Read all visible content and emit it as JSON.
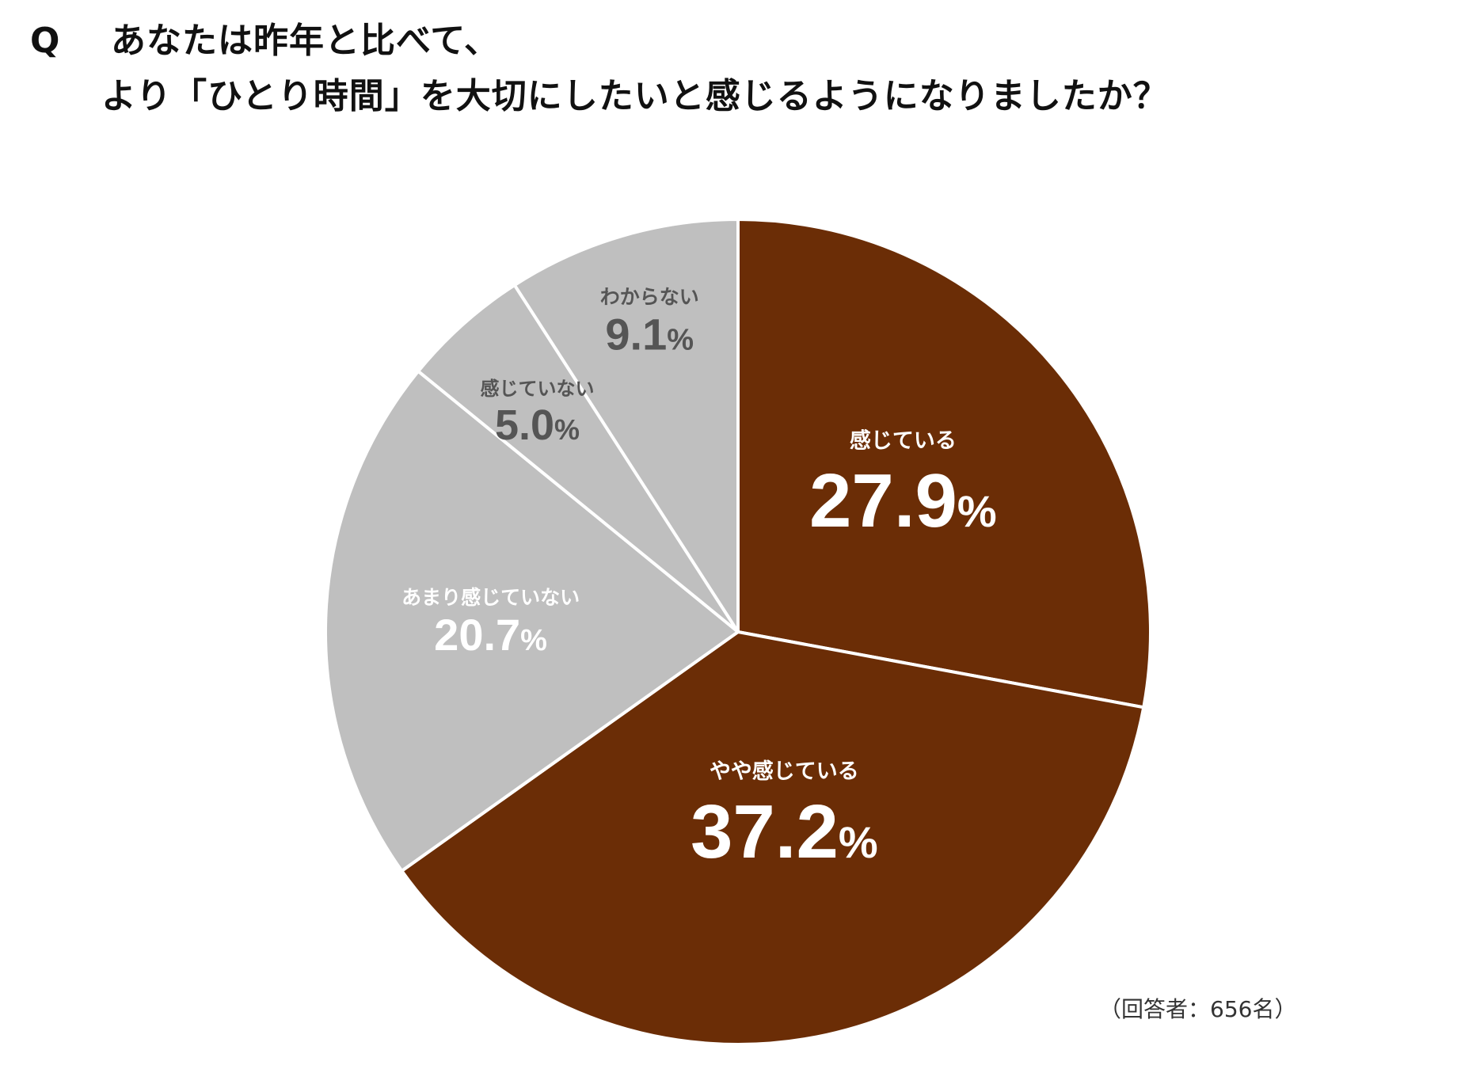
{
  "title": {
    "q": "Q",
    "line1": "あなたは昨年と比べて、",
    "line2": "より「ひとり時間」を大切にしたいと感じるようになりましたか？"
  },
  "note": "（回答者：656名）",
  "chart_data": {
    "type": "pie",
    "slices": [
      {
        "label": "感じている",
        "value": 27.9,
        "display": "27.9",
        "unit": "%",
        "color": "#6b2d06",
        "text_color": "#ffffff"
      },
      {
        "label": "やや感じている",
        "value": 37.2,
        "display": "37.2",
        "unit": "%",
        "color": "#6b2d06",
        "text_color": "#ffffff"
      },
      {
        "label": "あまり感じていない",
        "value": 20.7,
        "display": "20.7",
        "unit": "%",
        "color": "#bfbfbf",
        "text_color": "#ffffff"
      },
      {
        "label": "感じていない",
        "value": 5.0,
        "display": "5.0",
        "unit": "%",
        "color": "#bfbfbf",
        "text_color": "#555555"
      },
      {
        "label": "わからない",
        "value": 9.1,
        "display": "9.1",
        "unit": "%",
        "color": "#bfbfbf",
        "text_color": "#555555"
      }
    ],
    "start_angle_deg": 0,
    "direction": "clockwise",
    "border_color": "#ffffff"
  }
}
